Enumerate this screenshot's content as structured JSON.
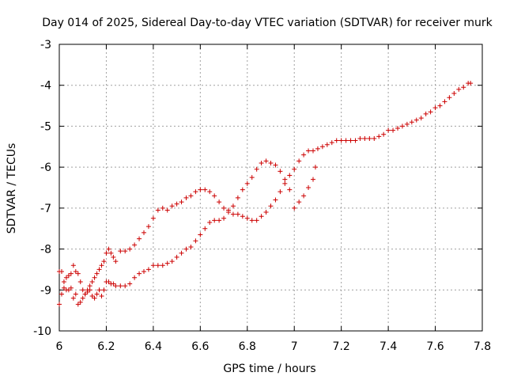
{
  "chart_data": {
    "type": "scatter",
    "title": "Day 014 of 2025, Sidereal Day-to-day VTEC variation (SDTVAR) for receiver murk",
    "xlabel": "GPS time / hours",
    "ylabel": "SDTVAR / TECUs",
    "xlim": [
      6,
      7.8
    ],
    "ylim": [
      -10,
      -3
    ],
    "xticks": [
      6,
      6.2,
      6.4,
      6.6,
      6.8,
      7,
      7.2,
      7.4,
      7.6,
      7.8
    ],
    "xtick_labels": [
      "6",
      "6.2",
      "6.4",
      "6.6",
      "6.8",
      "7",
      "7.2",
      "7.4",
      "7.6",
      "7.8"
    ],
    "yticks": [
      -10,
      -9,
      -8,
      -7,
      -6,
      -5,
      -4,
      -3
    ],
    "ytick_labels": [
      "-10",
      "-9",
      "-8",
      "-7",
      "-6",
      "-5",
      "-4",
      "-3"
    ],
    "grid": true,
    "marker": "plus",
    "colors": {
      "points": "#cc0000",
      "grid": "#a0a0a0",
      "axes": "#000000"
    },
    "series": [
      {
        "name": "upper track",
        "x": [
          6.0,
          6.01,
          6.02,
          6.03,
          6.04,
          6.05,
          6.06,
          6.07,
          6.08,
          6.09,
          6.1,
          6.11,
          6.12,
          6.13,
          6.14,
          6.15,
          6.16,
          6.17,
          6.18,
          6.19,
          6.2,
          6.21,
          6.22,
          6.23,
          6.24,
          6.26,
          6.28,
          6.3,
          6.32,
          6.34,
          6.36,
          6.38,
          6.4,
          6.42,
          6.44,
          6.46,
          6.48,
          6.5,
          6.52,
          6.54,
          6.56,
          6.58,
          6.6,
          6.62,
          6.64,
          6.66,
          6.68,
          6.7,
          6.72,
          6.74,
          6.76,
          6.78,
          6.8,
          6.82,
          6.84,
          6.86,
          6.88,
          6.9,
          6.92,
          6.94,
          6.96,
          6.98,
          7.0,
          7.02,
          7.04,
          7.06,
          7.08,
          7.1,
          7.12,
          7.14,
          7.16,
          7.18,
          7.2,
          7.22,
          7.24,
          7.26,
          7.28,
          7.3,
          7.32,
          7.34,
          7.36,
          7.38,
          7.4,
          7.42,
          7.44,
          7.46,
          7.48,
          7.5,
          7.52,
          7.54,
          7.56,
          7.58,
          7.6,
          7.62,
          7.64,
          7.66,
          7.68,
          7.7,
          7.72,
          7.74,
          7.75
        ],
        "y": [
          -8.55,
          -8.55,
          -8.8,
          -8.7,
          -8.65,
          -8.6,
          -8.4,
          -8.55,
          -8.6,
          -8.8,
          -9.0,
          -9.1,
          -9.0,
          -8.9,
          -8.8,
          -8.7,
          -8.6,
          -8.5,
          -8.4,
          -8.3,
          -8.1,
          -8.0,
          -8.1,
          -8.2,
          -8.3,
          -8.05,
          -8.05,
          -8.0,
          -7.9,
          -7.75,
          -7.6,
          -7.45,
          -7.25,
          -7.05,
          -7.0,
          -7.05,
          -6.95,
          -6.9,
          -6.85,
          -6.75,
          -6.7,
          -6.6,
          -6.55,
          -6.55,
          -6.6,
          -6.7,
          -6.85,
          -7.0,
          -7.1,
          -7.15,
          -7.15,
          -7.2,
          -7.25,
          -7.3,
          -7.3,
          -7.2,
          -7.1,
          -6.95,
          -6.8,
          -6.6,
          -6.4,
          -6.2,
          -6.05,
          -5.85,
          -5.7,
          -5.6,
          -5.6,
          -5.55,
          -5.5,
          -5.45,
          -5.4,
          -5.35,
          -5.35,
          -5.35,
          -5.35,
          -5.35,
          -5.3,
          -5.3,
          -5.3,
          -5.3,
          -5.25,
          -5.2,
          -5.1,
          -5.1,
          -5.05,
          -5.0,
          -4.95,
          -4.9,
          -4.85,
          -4.8,
          -4.7,
          -4.65,
          -4.55,
          -4.5,
          -4.4,
          -4.3,
          -4.2,
          -4.1,
          -4.05,
          -3.95,
          -3.95
        ]
      },
      {
        "name": "lower track",
        "x": [
          6.0,
          6.01,
          6.02,
          6.03,
          6.04,
          6.05,
          6.06,
          6.07,
          6.08,
          6.09,
          6.1,
          6.11,
          6.12,
          6.13,
          6.14,
          6.15,
          6.16,
          6.17,
          6.18,
          6.19,
          6.2,
          6.21,
          6.22,
          6.23,
          6.24,
          6.26,
          6.28,
          6.3,
          6.32,
          6.34,
          6.36,
          6.38,
          6.4,
          6.42,
          6.44,
          6.46,
          6.48,
          6.5,
          6.52,
          6.54,
          6.56,
          6.58,
          6.6,
          6.62,
          6.64,
          6.66,
          6.68,
          6.7,
          6.72,
          6.74,
          6.76,
          6.78,
          6.8,
          6.82,
          6.84,
          6.86,
          6.88,
          6.9,
          6.92,
          6.94,
          6.96,
          6.98,
          7.0,
          7.02,
          7.04,
          7.06,
          7.08,
          7.09
        ],
        "y": [
          -9.35,
          -9.1,
          -8.95,
          -9.0,
          -9.0,
          -8.95,
          -9.2,
          -9.1,
          -9.35,
          -9.3,
          -9.2,
          -9.1,
          -9.05,
          -9.0,
          -9.15,
          -9.2,
          -9.1,
          -9.0,
          -9.15,
          -9.0,
          -8.8,
          -8.8,
          -8.85,
          -8.85,
          -8.9,
          -8.9,
          -8.9,
          -8.85,
          -8.7,
          -8.6,
          -8.55,
          -8.5,
          -8.4,
          -8.4,
          -8.4,
          -8.35,
          -8.3,
          -8.2,
          -8.1,
          -8.0,
          -7.95,
          -7.8,
          -7.65,
          -7.5,
          -7.35,
          -7.3,
          -7.3,
          -7.25,
          -7.05,
          -6.95,
          -6.75,
          -6.55,
          -6.4,
          -6.25,
          -6.05,
          -5.9,
          -5.85,
          -5.9,
          -5.95,
          -6.1,
          -6.3,
          -6.55,
          -7.0,
          -6.85,
          -6.7,
          -6.5,
          -6.3,
          -6.0
        ]
      }
    ]
  }
}
